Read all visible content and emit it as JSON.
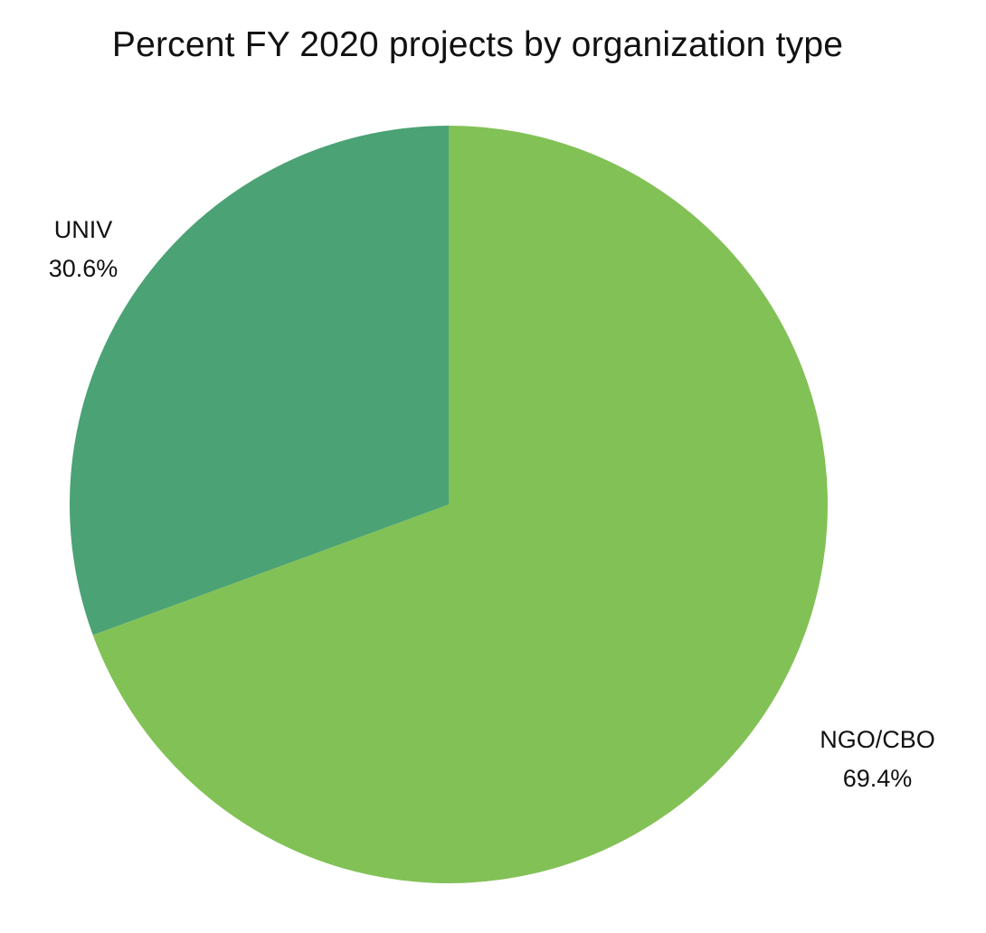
{
  "chart_data": {
    "type": "pie",
    "title": "Percent FY 2020 projects by organization type",
    "slices": [
      {
        "label": "NGO/CBO",
        "value": 69.4,
        "value_label": "69.4%",
        "color": "#82c156"
      },
      {
        "label": "UNIV",
        "value": 30.6,
        "value_label": "30.6%",
        "color": "#4ba274"
      }
    ],
    "start": "12 o'clock",
    "direction": "clockwise"
  }
}
